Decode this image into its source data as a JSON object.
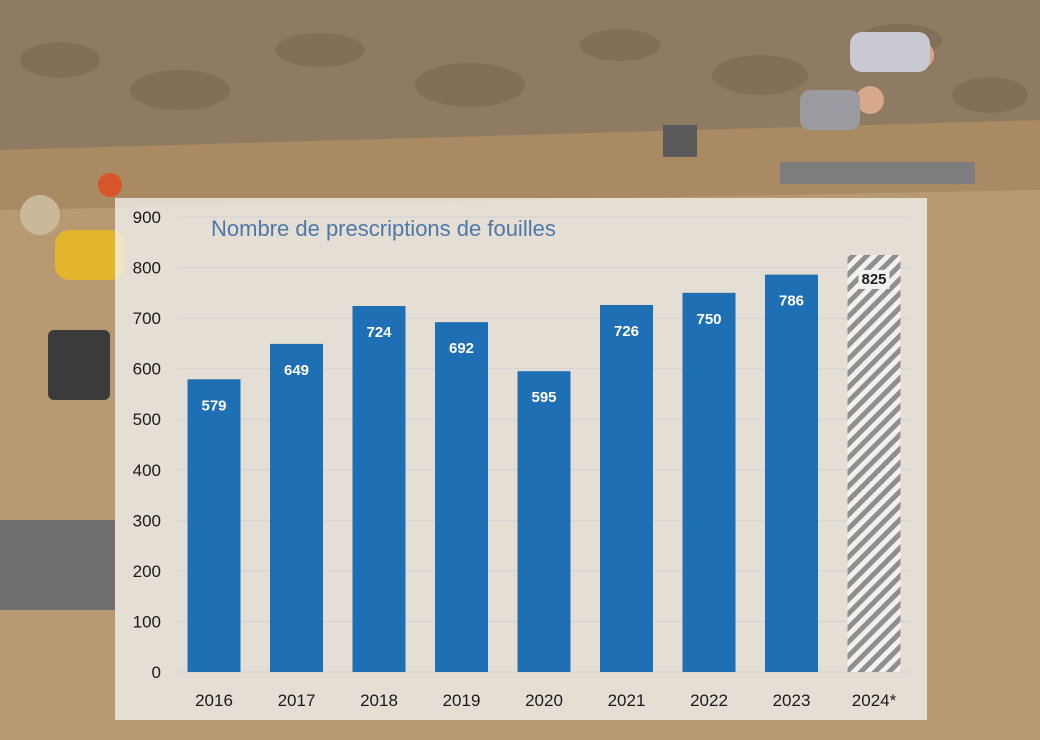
{
  "chart_data": {
    "type": "bar",
    "title": "Nombre de prescriptions de fouilles",
    "xlabel": "",
    "ylabel": "",
    "categories": [
      "2016",
      "2017",
      "2018",
      "2019",
      "2020",
      "2021",
      "2022",
      "2023",
      "2024*"
    ],
    "values": [
      579,
      649,
      724,
      692,
      595,
      726,
      750,
      786,
      825
    ],
    "data_labels": [
      "579",
      "649",
      "724",
      "692",
      "595",
      "726",
      "750",
      "786",
      "825"
    ],
    "ylim": [
      0,
      900
    ],
    "yticks": [
      "0",
      "100",
      "200",
      "300",
      "400",
      "500",
      "600",
      "700",
      "800",
      "900"
    ],
    "grid": true,
    "legend": "none",
    "projected_category": "2024*",
    "colors": {
      "bar": "#1f6fb5",
      "projected_hatch": "#8f8f8f",
      "label_on_bar": "#ffffff",
      "label_projected": "#222222",
      "grid": "#d2d2d2",
      "title": "#4f78a8"
    }
  },
  "background": {
    "description_icon": "excavation-photo"
  }
}
